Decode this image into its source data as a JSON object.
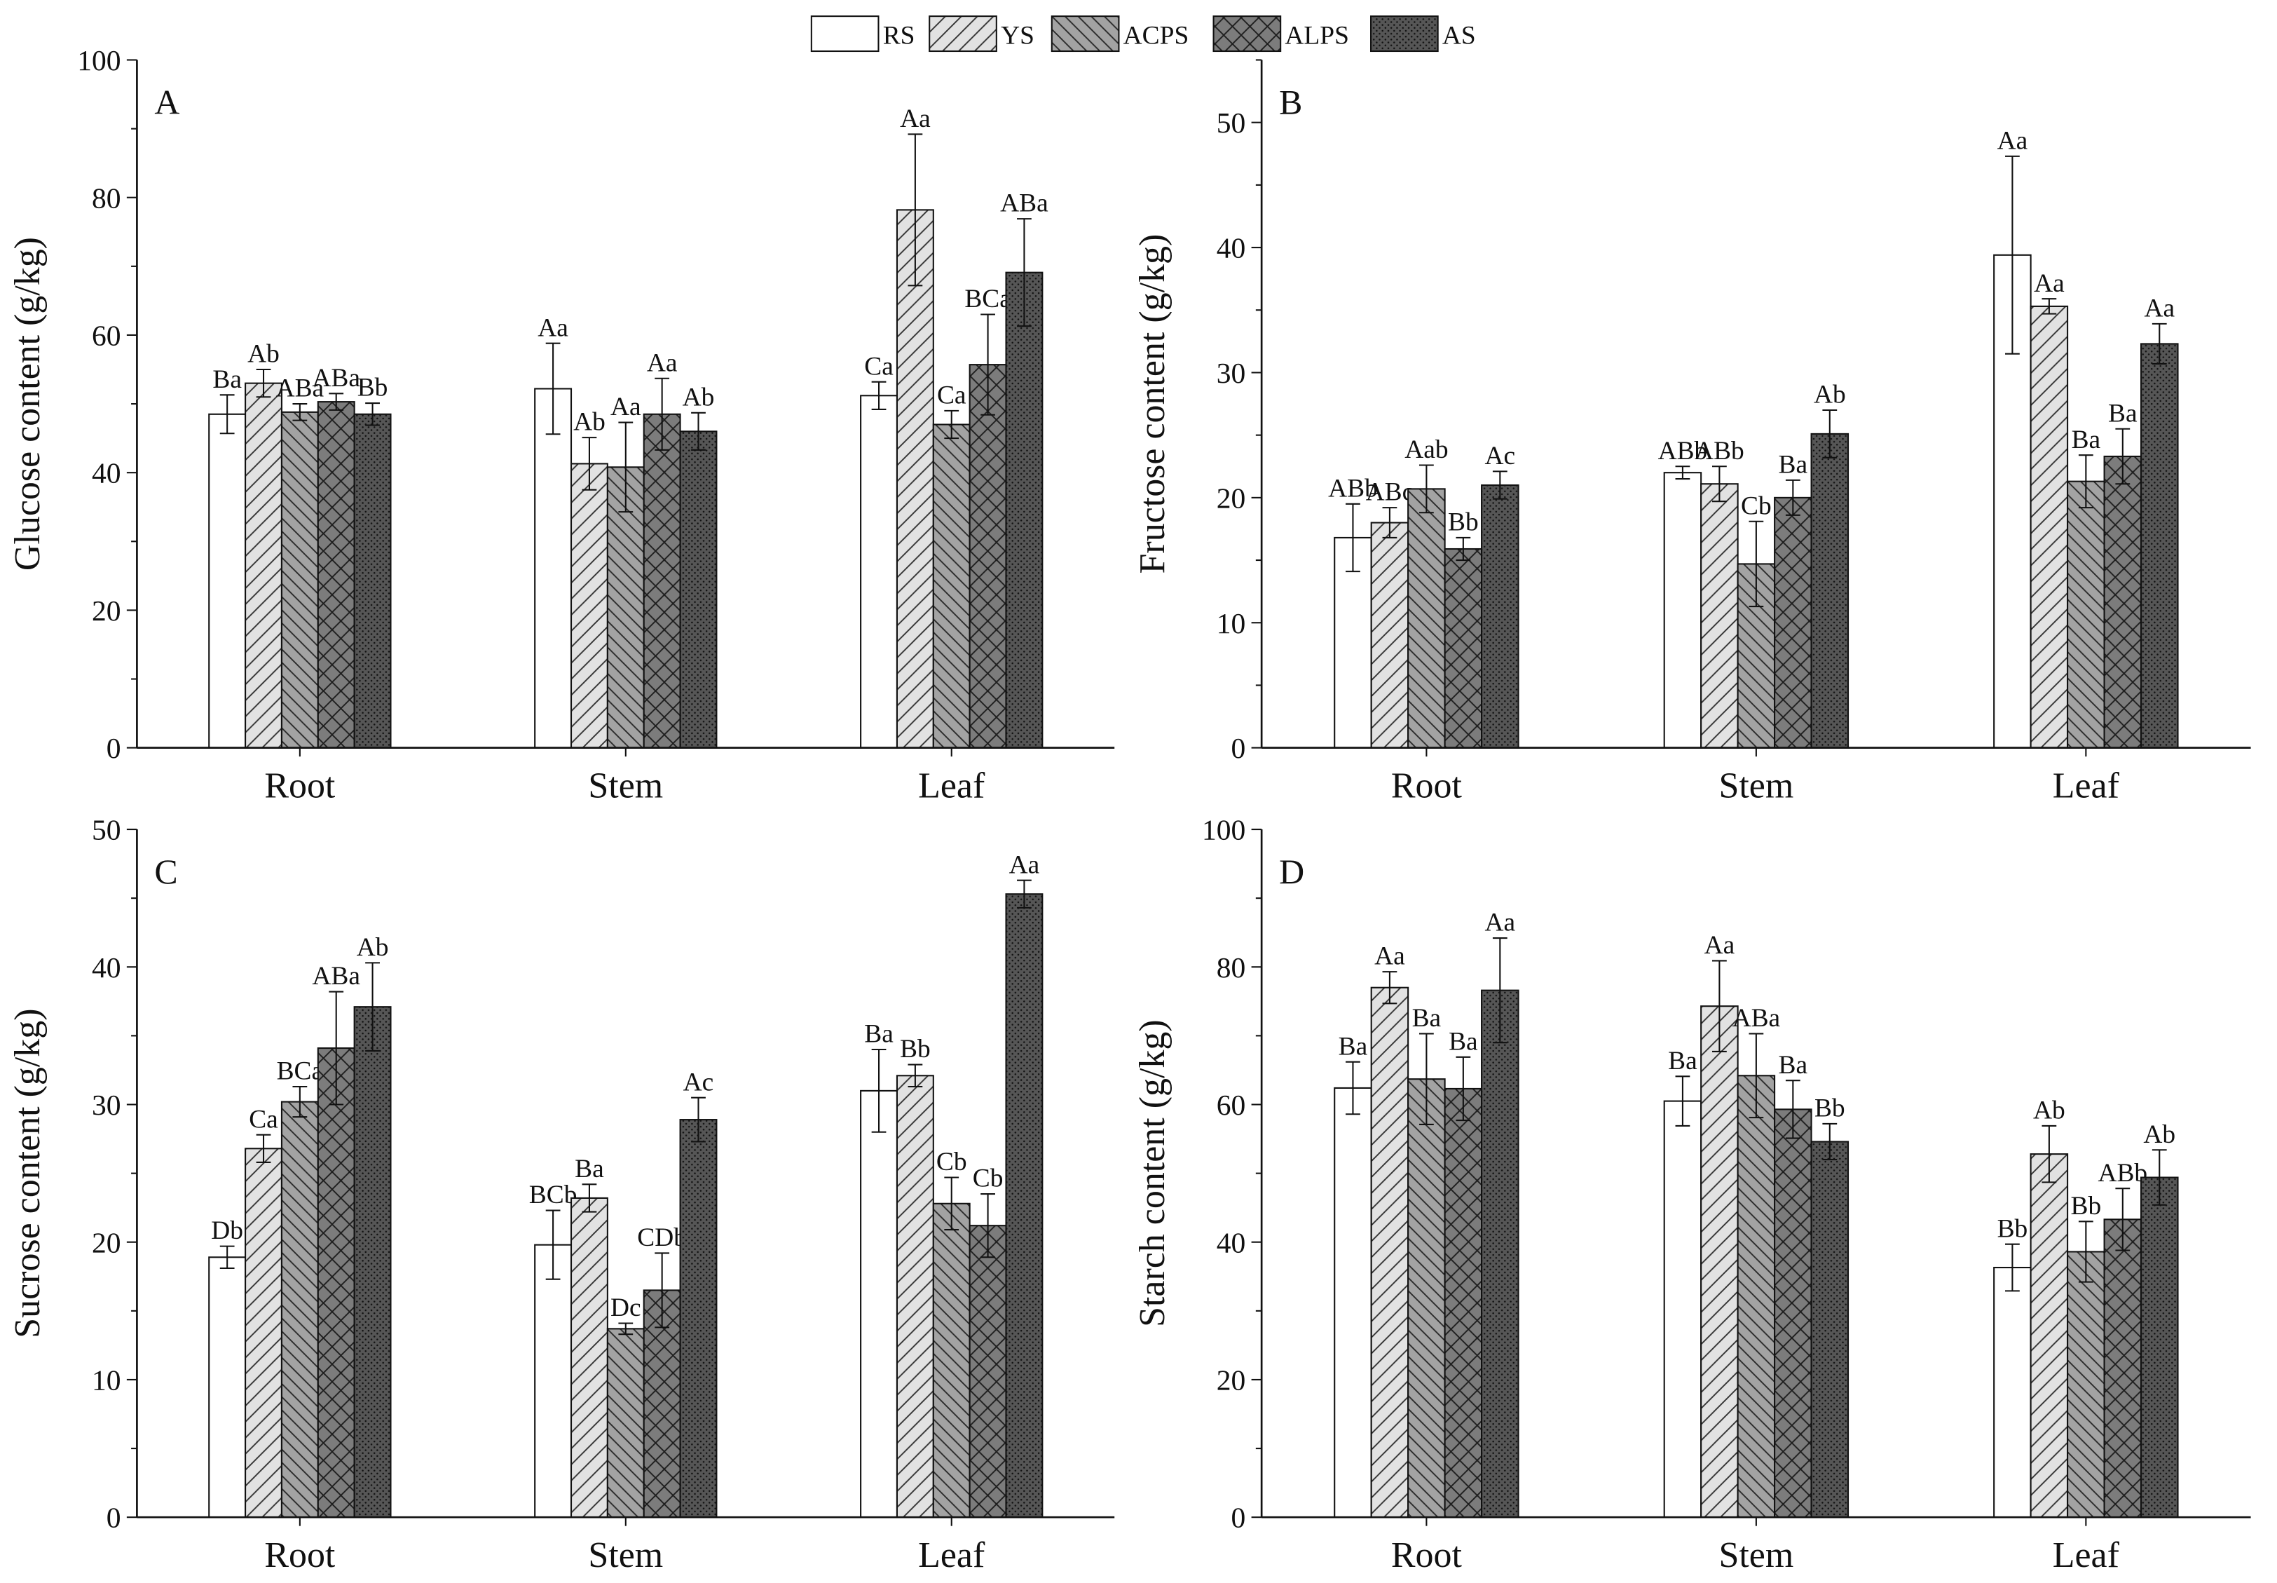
{
  "legend": [
    {
      "name": "RS",
      "pattern": "solid-white"
    },
    {
      "name": "YS",
      "pattern": "diag-light"
    },
    {
      "name": "ACPS",
      "pattern": "backdiag-mid"
    },
    {
      "name": "ALPS",
      "pattern": "cross-dark"
    },
    {
      "name": "AS",
      "pattern": "dots-darkest"
    }
  ],
  "colors": {
    "RS": "#ffffff",
    "YS": "#e0e0e0",
    "ACPS": "#a3a3a3",
    "ALPS": "#7a7a7a",
    "AS": "#555555",
    "line": "#111111"
  },
  "chart_data": [
    {
      "type": "bar",
      "panel": "A",
      "title": "",
      "xlabel": "",
      "ylabel": "Glucose content (g/kg)",
      "categories": [
        "Root",
        "Stem",
        "Leaf"
      ],
      "ylim": [
        0,
        100
      ],
      "yticks": [
        0,
        20,
        40,
        60,
        80,
        100
      ],
      "series": [
        {
          "name": "RS",
          "values": [
            48.5,
            52.2,
            51.2
          ],
          "errors": [
            2.8,
            6.6,
            2.0
          ],
          "letters": [
            "Ba",
            "Aa",
            "Ca"
          ]
        },
        {
          "name": "YS",
          "values": [
            53.0,
            41.3,
            78.2
          ],
          "errors": [
            2.0,
            3.8,
            11.0
          ],
          "letters": [
            "Ab",
            "Ab",
            "Aa"
          ]
        },
        {
          "name": "ACPS",
          "values": [
            48.8,
            40.8,
            47.0
          ],
          "errors": [
            1.2,
            6.5,
            2.0
          ],
          "letters": [
            "ABa",
            "Aa",
            "Ca"
          ]
        },
        {
          "name": "ALPS",
          "values": [
            50.3,
            48.5,
            55.7
          ],
          "errors": [
            1.2,
            5.2,
            7.3
          ],
          "letters": [
            "ABa",
            "Aa",
            "BCa"
          ]
        },
        {
          "name": "AS",
          "values": [
            48.5,
            46.0,
            69.1
          ],
          "errors": [
            1.6,
            2.7,
            7.8
          ],
          "letters": [
            "Bb",
            "Ab",
            "ABa"
          ]
        }
      ]
    },
    {
      "type": "bar",
      "panel": "B",
      "title": "",
      "xlabel": "",
      "ylabel": "Fructose content (g/kg)",
      "categories": [
        "Root",
        "Stem",
        "Leaf"
      ],
      "ylim": [
        0,
        55
      ],
      "yticks": [
        0,
        10,
        20,
        30,
        40,
        50
      ],
      "series": [
        {
          "name": "RS",
          "values": [
            16.8,
            22.0,
            39.4
          ],
          "errors": [
            2.7,
            0.5,
            7.9
          ],
          "letters": [
            "ABb",
            "ABb",
            "Aa"
          ]
        },
        {
          "name": "YS",
          "values": [
            18.0,
            21.1,
            35.3
          ],
          "errors": [
            1.2,
            1.4,
            0.6
          ],
          "letters": [
            "ABc",
            "ABb",
            "Aa"
          ]
        },
        {
          "name": "ACPS",
          "values": [
            20.7,
            14.7,
            21.3
          ],
          "errors": [
            1.9,
            3.4,
            2.1
          ],
          "letters": [
            "Aab",
            "Cb",
            "Ba"
          ]
        },
        {
          "name": "ALPS",
          "values": [
            15.9,
            20.0,
            23.3
          ],
          "errors": [
            0.9,
            1.4,
            2.2
          ],
          "letters": [
            "Bb",
            "Ba",
            "Ba"
          ]
        },
        {
          "name": "AS",
          "values": [
            21.0,
            25.1,
            32.3
          ],
          "errors": [
            1.1,
            1.9,
            1.6
          ],
          "letters": [
            "Ac",
            "Ab",
            "Aa"
          ]
        }
      ]
    },
    {
      "type": "bar",
      "panel": "C",
      "title": "",
      "xlabel": "",
      "ylabel": "Sucrose content (g/kg)",
      "categories": [
        "Root",
        "Stem",
        "Leaf"
      ],
      "ylim": [
        0,
        50
      ],
      "yticks": [
        0,
        10,
        20,
        30,
        40,
        50
      ],
      "series": [
        {
          "name": "RS",
          "values": [
            18.9,
            19.8,
            31.0
          ],
          "errors": [
            0.8,
            2.5,
            3.0
          ],
          "letters": [
            "Db",
            "BCb",
            "Ba"
          ]
        },
        {
          "name": "YS",
          "values": [
            26.8,
            23.2,
            32.1
          ],
          "errors": [
            1.0,
            1.0,
            0.8
          ],
          "letters": [
            "Ca",
            "Ba",
            "Bb"
          ]
        },
        {
          "name": "ACPS",
          "values": [
            30.2,
            13.7,
            22.8
          ],
          "errors": [
            1.1,
            0.4,
            1.9
          ],
          "letters": [
            "BCa",
            "Dc",
            "Cb"
          ]
        },
        {
          "name": "ALPS",
          "values": [
            34.1,
            16.5,
            21.2
          ],
          "errors": [
            4.1,
            2.7,
            2.3
          ],
          "letters": [
            "ABa",
            "CDb",
            "Cb"
          ]
        },
        {
          "name": "AS",
          "values": [
            37.1,
            28.9,
            45.3
          ],
          "errors": [
            3.2,
            1.6,
            1.0
          ],
          "letters": [
            "Ab",
            "Ac",
            "Aa"
          ]
        }
      ]
    },
    {
      "type": "bar",
      "panel": "D",
      "title": "",
      "xlabel": "",
      "ylabel": "Starch content (g/kg)",
      "categories": [
        "Root",
        "Stem",
        "Leaf"
      ],
      "ylim": [
        0,
        100
      ],
      "yticks": [
        0,
        20,
        40,
        60,
        80,
        100
      ],
      "series": [
        {
          "name": "RS",
          "values": [
            62.4,
            60.5,
            36.3
          ],
          "errors": [
            3.8,
            3.6,
            3.4
          ],
          "letters": [
            "Ba",
            "Ba",
            "Bb"
          ]
        },
        {
          "name": "YS",
          "values": [
            77.0,
            74.3,
            52.8
          ],
          "errors": [
            2.3,
            6.6,
            4.1
          ],
          "letters": [
            "Aa",
            "Aa",
            "Ab"
          ]
        },
        {
          "name": "ACPS",
          "values": [
            63.7,
            64.2,
            38.6
          ],
          "errors": [
            6.6,
            6.1,
            4.4
          ],
          "letters": [
            "Ba",
            "ABa",
            "Bb"
          ]
        },
        {
          "name": "ALPS",
          "values": [
            62.3,
            59.3,
            43.3
          ],
          "errors": [
            4.6,
            4.2,
            4.5
          ],
          "letters": [
            "Ba",
            "Ba",
            "ABb"
          ]
        },
        {
          "name": "AS",
          "values": [
            76.6,
            54.6,
            49.4
          ],
          "errors": [
            7.6,
            2.6,
            4.0
          ],
          "letters": [
            "Aa",
            "Bb",
            "Ab"
          ]
        }
      ]
    }
  ]
}
